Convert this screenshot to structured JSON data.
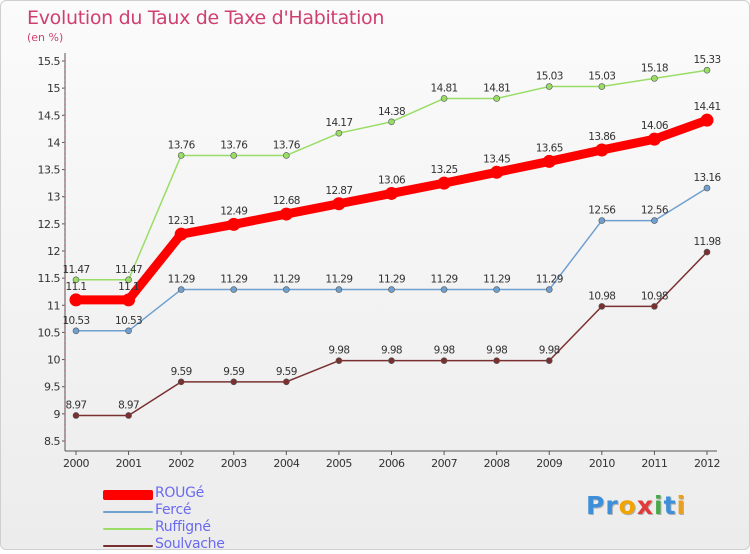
{
  "header": {
    "title": "Evolution du Taux de Taxe d'Habitation",
    "subtitle": "(en %)"
  },
  "chart_data": {
    "type": "line",
    "title": "Evolution du Taux de Taxe d'Habitation",
    "ylabel": "(en %)",
    "xlabel": "",
    "categories": [
      "2000",
      "2001",
      "2002",
      "2003",
      "2004",
      "2005",
      "2006",
      "2007",
      "2008",
      "2009",
      "2010",
      "2011",
      "2012"
    ],
    "ylim": [
      8.5,
      15.5
    ],
    "yticks": [
      8.5,
      9,
      9.5,
      10,
      10.5,
      11,
      11.5,
      12,
      12.5,
      13,
      13.5,
      14,
      14.5,
      15,
      15.5
    ],
    "ytick_labels": [
      "8.5",
      "9",
      "9.5",
      "10",
      "10.5",
      "11",
      "11.5",
      "12",
      "12.5",
      "13",
      "13.5",
      "14",
      "14.5",
      "15",
      "15.5"
    ],
    "grid": false,
    "legend_position": "bottom-left",
    "series": [
      {
        "name": "ROUGé",
        "color": "#ff0000",
        "highlight": true,
        "values": [
          11.1,
          11.1,
          12.31,
          12.49,
          12.68,
          12.87,
          13.06,
          13.25,
          13.45,
          13.65,
          13.86,
          14.06,
          14.41
        ],
        "labels": [
          "11.1",
          "11.1",
          "12.31",
          "12.49",
          "12.68",
          "12.87",
          "13.06",
          "13.25",
          "13.45",
          "13.65",
          "13.86",
          "14.06",
          "14.41"
        ]
      },
      {
        "name": "Fercé",
        "color": "#6fa0d0",
        "highlight": false,
        "values": [
          10.53,
          10.53,
          11.29,
          11.29,
          11.29,
          11.29,
          11.29,
          11.29,
          11.29,
          11.29,
          12.56,
          12.56,
          13.16
        ],
        "labels": [
          "10.53",
          "10.53",
          "11.29",
          "11.29",
          "11.29",
          "11.29",
          "11.29",
          "11.29",
          "11.29",
          "11.29",
          "12.56",
          "12.56",
          "13.16"
        ]
      },
      {
        "name": "Ruffigné",
        "color": "#99dd66",
        "highlight": false,
        "values": [
          11.47,
          11.47,
          13.76,
          13.76,
          13.76,
          14.17,
          14.38,
          14.81,
          14.81,
          15.03,
          15.03,
          15.18,
          15.33
        ],
        "labels": [
          "11.47",
          "11.47",
          "13.76",
          "13.76",
          "13.76",
          "14.17",
          "14.38",
          "14.81",
          "14.81",
          "15.03",
          "15.03",
          "15.18",
          "15.33"
        ]
      },
      {
        "name": "Soulvache",
        "color": "#7a3030",
        "highlight": false,
        "values": [
          8.97,
          8.97,
          9.59,
          9.59,
          9.59,
          9.98,
          9.98,
          9.98,
          9.98,
          9.98,
          10.98,
          10.98,
          11.98
        ],
        "labels": [
          "8.97",
          "8.97",
          "9.59",
          "9.59",
          "9.59",
          "9.98",
          "9.98",
          "9.98",
          "9.98",
          "9.98",
          "10.98",
          "10.98",
          "11.98"
        ]
      }
    ]
  },
  "legend": {
    "items": [
      {
        "label": "ROUGé",
        "color": "#ff0000"
      },
      {
        "label": "Fercé",
        "color": "#6fa0d0"
      },
      {
        "label": "Ruffigné",
        "color": "#99dd66"
      },
      {
        "label": "Soulvache",
        "color": "#7a3030"
      }
    ]
  },
  "brand": {
    "letters": [
      {
        "char": "P",
        "color": "#3c8fd8"
      },
      {
        "char": "r",
        "color": "#3c8fd8"
      },
      {
        "char": "o",
        "color": "#f2a300"
      },
      {
        "char": "x",
        "color": "#e23a3a"
      },
      {
        "char": "i",
        "color": "#4aa84a"
      },
      {
        "char": "t",
        "color": "#3c8fd8"
      },
      {
        "char": "i",
        "color": "#e8a020"
      }
    ]
  }
}
